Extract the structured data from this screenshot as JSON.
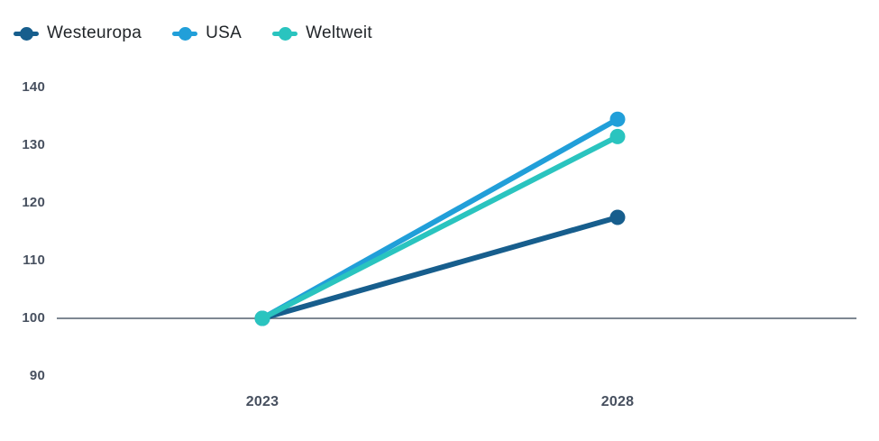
{
  "legend": {
    "items": [
      {
        "label": "Westeuropa",
        "color": "#175E8D"
      },
      {
        "label": "USA",
        "color": "#219FD9"
      },
      {
        "label": "Weltweit",
        "color": "#2AC4BF"
      }
    ]
  },
  "chart_data": {
    "type": "line",
    "categories": [
      "2023",
      "2028"
    ],
    "series": [
      {
        "name": "Westeuropa",
        "color": "#175E8D",
        "values": [
          100,
          117.5
        ]
      },
      {
        "name": "USA",
        "color": "#219FD9",
        "values": [
          100,
          134.5
        ]
      },
      {
        "name": "Weltweit",
        "color": "#2AC4BF",
        "values": [
          100,
          131.5
        ]
      }
    ],
    "title": "",
    "xlabel": "",
    "ylabel": "",
    "ylim": [
      90,
      140
    ],
    "yticks": [
      90,
      100,
      110,
      120,
      130,
      140
    ],
    "baseline_value": 100,
    "baseline_color": "#7E8892",
    "grid": false,
    "legend_position": "top-left",
    "marker": "circle"
  },
  "colors": {
    "background": "#FFFFFF",
    "tick_text": "#47505F",
    "legend_text": "#212529"
  }
}
